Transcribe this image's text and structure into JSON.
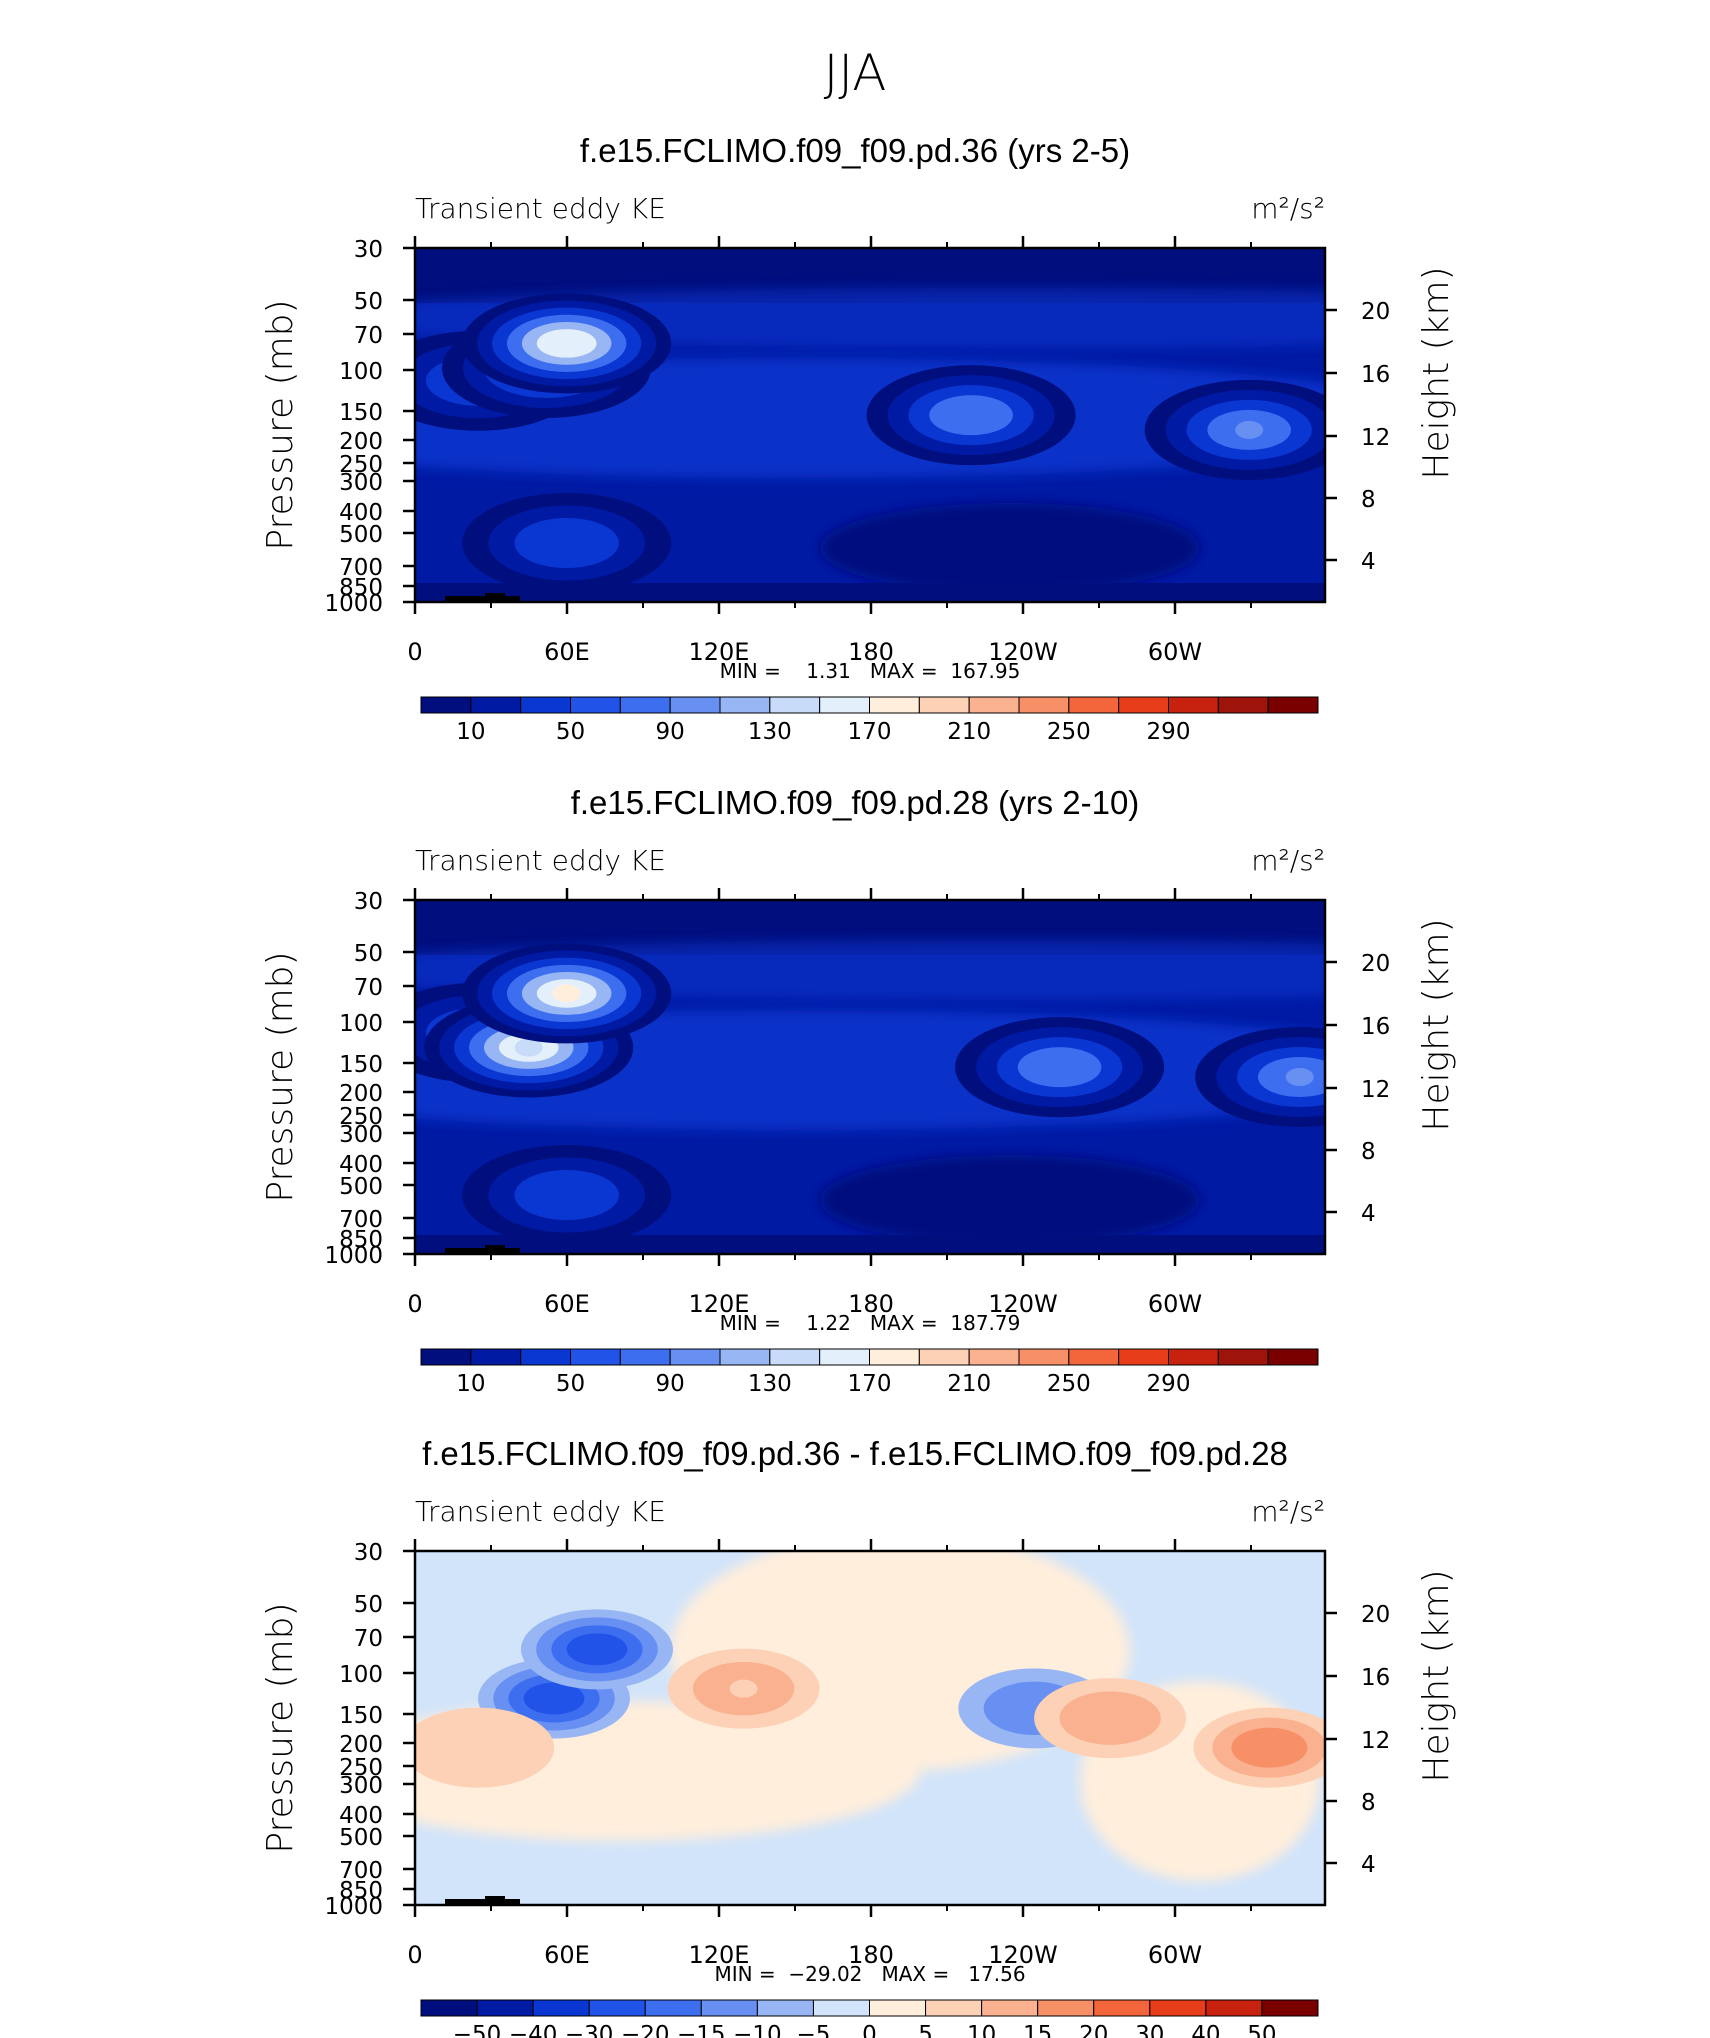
{
  "page_title": "JJA",
  "chart_data": [
    {
      "type": "heatmap",
      "title": "f.e15.FCLIMO.f09_f09.pd.36 (yrs 2-5)",
      "left_string": "Transient eddy KE",
      "right_string": "m²/s²",
      "ylabel": "Pressure (mb)",
      "ylabel_right": "Height (km)",
      "x_ticks": [
        "0",
        "60E",
        "120E",
        "180",
        "120W",
        "60W"
      ],
      "y_ticks": [
        "30",
        "50",
        "70",
        "100",
        "150",
        "200",
        "250",
        "300",
        "400",
        "500",
        "700",
        "850",
        "1000"
      ],
      "y_right_ticks": [
        "20",
        "16",
        "12",
        "8",
        "4"
      ],
      "stats": "MIN =    1.31   MAX =  167.95",
      "colorbar_labels": [
        "10",
        "50",
        "90",
        "130",
        "170",
        "210",
        "250",
        "290"
      ],
      "colorbar_colors": [
        "#000e7e",
        "#001aa4",
        "#0a37d1",
        "#2153e8",
        "#3e6ef0",
        "#6790f2",
        "#98b6f4",
        "#c8dbf8",
        "#e3f0fc",
        "#ffeedc",
        "#fdd1b6",
        "#fab18f",
        "#f78f67",
        "#f3663b",
        "#e73d1b",
        "#c72210",
        "#9e130a",
        "#7a0000"
      ],
      "blobs": [
        {
          "x": 25,
          "y": 135,
          "value": 70
        },
        {
          "x": 52,
          "y": 122,
          "value": 110
        },
        {
          "x": 60,
          "y": 97,
          "value": 168
        },
        {
          "x": 220,
          "y": 170,
          "value": 80
        },
        {
          "x": 330,
          "y": 185,
          "value": 100
        },
        {
          "x": 60,
          "y": 300,
          "value": 45
        }
      ]
    },
    {
      "type": "heatmap",
      "title": "f.e15.FCLIMO.f09_f09.pd.28 (yrs 2-10)",
      "left_string": "Transient eddy KE",
      "right_string": "m²/s²",
      "ylabel": "Pressure (mb)",
      "ylabel_right": "Height (km)",
      "x_ticks": [
        "0",
        "60E",
        "120E",
        "180",
        "120W",
        "60W"
      ],
      "y_ticks": [
        "30",
        "50",
        "70",
        "100",
        "150",
        "200",
        "250",
        "300",
        "400",
        "500",
        "700",
        "850",
        "1000"
      ],
      "y_right_ticks": [
        "20",
        "16",
        "12",
        "8",
        "4"
      ],
      "stats": "MIN =    1.22   MAX =  187.79",
      "colorbar_labels": [
        "10",
        "50",
        "90",
        "130",
        "170",
        "210",
        "250",
        "290"
      ],
      "colorbar_colors": [
        "#000e7e",
        "#001aa4",
        "#0a37d1",
        "#2153e8",
        "#3e6ef0",
        "#6790f2",
        "#98b6f4",
        "#c8dbf8",
        "#e3f0fc",
        "#ffeedc",
        "#fdd1b6",
        "#fab18f",
        "#f78f67",
        "#f3663b",
        "#e73d1b",
        "#c72210",
        "#9e130a",
        "#7a0000"
      ],
      "blobs": [
        {
          "x": 25,
          "y": 135,
          "value": 70
        },
        {
          "x": 45,
          "y": 150,
          "value": 150
        },
        {
          "x": 60,
          "y": 95,
          "value": 188
        },
        {
          "x": 255,
          "y": 170,
          "value": 90
        },
        {
          "x": 350,
          "y": 180,
          "value": 100
        },
        {
          "x": 60,
          "y": 300,
          "value": 45
        }
      ]
    },
    {
      "type": "heatmap",
      "title": "f.e15.FCLIMO.f09_f09.pd.36 - f.e15.FCLIMO.f09_f09.pd.28",
      "left_string": "Transient eddy KE",
      "right_string": "m²/s²",
      "ylabel": "Pressure (mb)",
      "ylabel_right": "Height (km)",
      "x_ticks": [
        "0",
        "60E",
        "120E",
        "180",
        "120W",
        "60W"
      ],
      "y_ticks": [
        "30",
        "50",
        "70",
        "100",
        "150",
        "200",
        "250",
        "300",
        "400",
        "500",
        "700",
        "850",
        "1000"
      ],
      "y_right_ticks": [
        "20",
        "16",
        "12",
        "8",
        "4"
      ],
      "stats": "MIN =  −29.02   MAX =   17.56",
      "colorbar_labels": [
        "−50",
        "−40",
        "−30",
        "−20",
        "−15",
        "−10",
        "−5",
        "0",
        "5",
        "10",
        "15",
        "20",
        "30",
        "40",
        "50"
      ],
      "colorbar_colors": [
        "#000e7e",
        "#001aa4",
        "#0a37d1",
        "#2153e8",
        "#3e6ef0",
        "#6790f2",
        "#98b6f4",
        "#d1e4fa",
        "#ffeedc",
        "#fdd1b6",
        "#fab18f",
        "#f78f67",
        "#f3663b",
        "#e73d1b",
        "#c72210",
        "#7a0000"
      ],
      "blobs": [
        {
          "x": 55,
          "y": 150,
          "value": -29
        },
        {
          "x": 72,
          "y": 100,
          "value": -25
        },
        {
          "x": 130,
          "y": 140,
          "value": 10
        },
        {
          "x": 245,
          "y": 160,
          "value": -10
        },
        {
          "x": 275,
          "y": 170,
          "value": 12
        },
        {
          "x": 338,
          "y": 200,
          "value": 17.5
        },
        {
          "x": 25,
          "y": 200,
          "value": 9
        }
      ]
    }
  ]
}
